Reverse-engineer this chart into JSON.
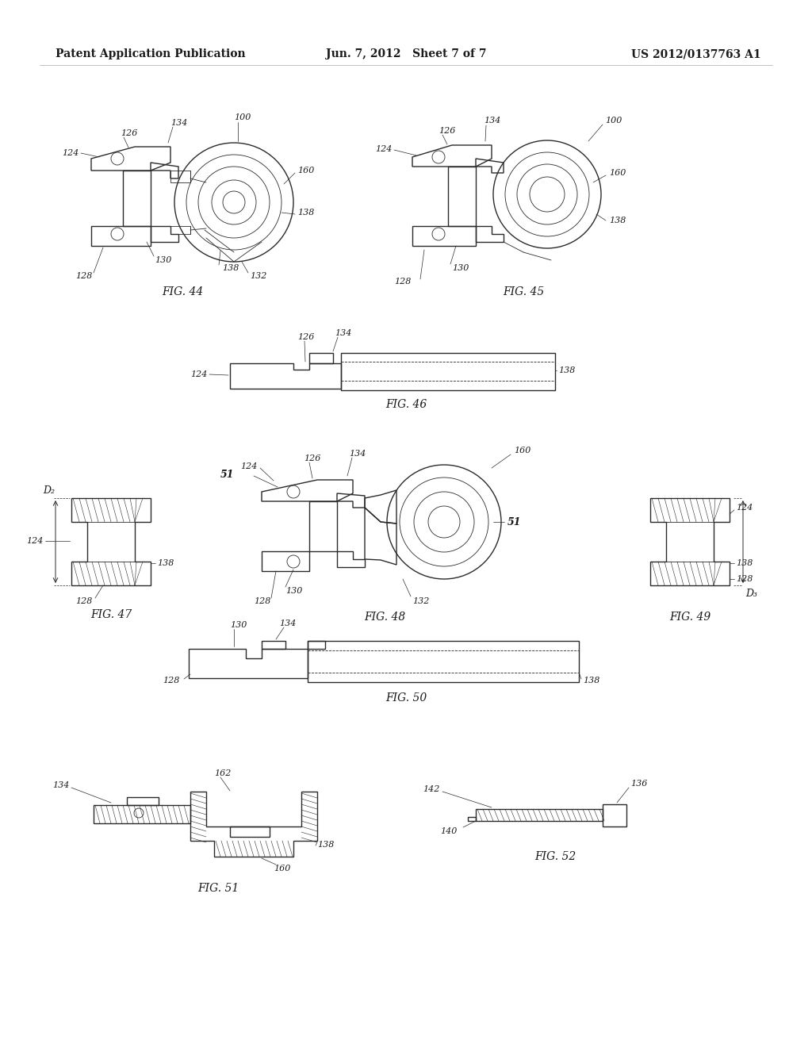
{
  "background_color": "#f5f5f0",
  "header_left": "Patent Application Publication",
  "header_center": "Jun. 7, 2012   Sheet 7 of 7",
  "header_right": "US 2012/0137763 A1",
  "line_color": "#2a2a2a",
  "line_width": 1.0,
  "thin_line": 0.6,
  "leader_color": "#2a2a2a",
  "ref_fontsize": 8,
  "fig_fontsize": 10
}
